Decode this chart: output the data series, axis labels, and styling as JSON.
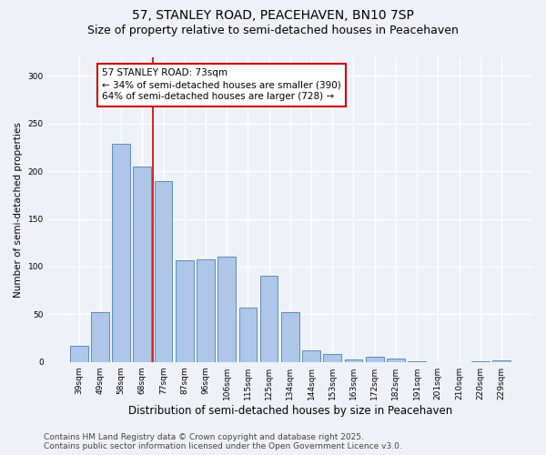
{
  "title": "57, STANLEY ROAD, PEACEHAVEN, BN10 7SP",
  "subtitle": "Size of property relative to semi-detached houses in Peacehaven",
  "xlabel": "Distribution of semi-detached houses by size in Peacehaven",
  "ylabel": "Number of semi-detached properties",
  "categories": [
    "39sqm",
    "49sqm",
    "58sqm",
    "68sqm",
    "77sqm",
    "87sqm",
    "96sqm",
    "106sqm",
    "115sqm",
    "125sqm",
    "134sqm",
    "144sqm",
    "153sqm",
    "163sqm",
    "172sqm",
    "182sqm",
    "191sqm",
    "201sqm",
    "210sqm",
    "220sqm",
    "229sqm"
  ],
  "values": [
    17,
    52,
    229,
    205,
    190,
    107,
    108,
    110,
    57,
    90,
    52,
    12,
    8,
    3,
    5,
    4,
    1,
    0,
    0,
    1,
    2
  ],
  "bar_color": "#aec6e8",
  "bar_edge_color": "#5b8db8",
  "property_label": "57 STANLEY ROAD: 73sqm",
  "property_smaller_pct": "34%",
  "property_smaller_n": 390,
  "property_larger_pct": "64%",
  "property_larger_n": 728,
  "vline_x_bar": 3.5,
  "vline_color": "#cc0000",
  "annotation_box_edge": "#cc0000",
  "ylim": [
    0,
    320
  ],
  "yticks": [
    0,
    50,
    100,
    150,
    200,
    250,
    300
  ],
  "footer_line1": "Contains HM Land Registry data © Crown copyright and database right 2025.",
  "footer_line2": "Contains public sector information licensed under the Open Government Licence v3.0.",
  "bg_color": "#eef2f8",
  "title_fontsize": 10,
  "subtitle_fontsize": 9,
  "xlabel_fontsize": 8.5,
  "ylabel_fontsize": 7.5,
  "tick_fontsize": 6.5,
  "footer_fontsize": 6.5,
  "ann_fontsize": 7.5
}
